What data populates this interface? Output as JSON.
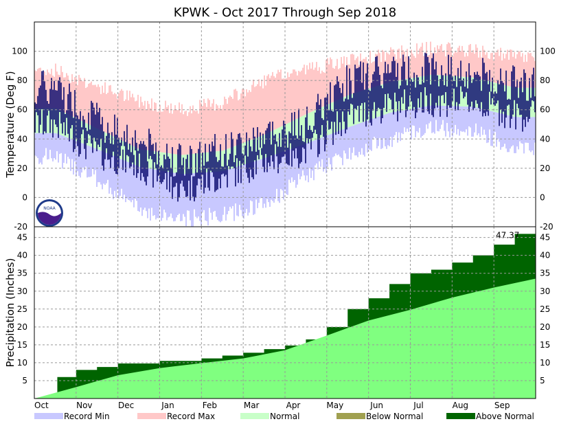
{
  "chart_data": {
    "title": "KPWK - Oct 2017 Through Sep 2018",
    "months": [
      "Oct",
      "Nov",
      "Dec",
      "Jan",
      "Feb",
      "Mar",
      "Apr",
      "May",
      "Jun",
      "Jul",
      "Aug",
      "Sep"
    ],
    "colors": {
      "record_min": "#c8c8ff",
      "record_max": "#ffc8c8",
      "normal": "#c8ffc8",
      "observed": "#0a0a6e",
      "precip_normal": "#80ff80",
      "above_normal": "#006400",
      "below_normal": "#a0a050"
    },
    "temperature": {
      "type": "bar",
      "ylabel": "Temperature (Deg F)",
      "ylim": [
        -20,
        120
      ],
      "yticks": [
        -20,
        0,
        20,
        40,
        60,
        80,
        100
      ],
      "monthly_series": {
        "normal_high": [
          61,
          47,
          33,
          29,
          32,
          43,
          57,
          70,
          79,
          84,
          82,
          75
        ],
        "normal_low": [
          44,
          33,
          21,
          16,
          18,
          27,
          37,
          48,
          58,
          63,
          62,
          55
        ],
        "record_high": [
          87,
          76,
          66,
          60,
          65,
          80,
          88,
          93,
          98,
          102,
          100,
          96
        ],
        "record_low": [
          28,
          12,
          -8,
          -15,
          -12,
          -5,
          15,
          30,
          40,
          48,
          46,
          34
        ],
        "observed_high": [
          75,
          52,
          38,
          25,
          32,
          42,
          50,
          80,
          86,
          88,
          84,
          78
        ],
        "observed_low": [
          50,
          30,
          22,
          5,
          14,
          25,
          32,
          55,
          62,
          66,
          65,
          56
        ]
      }
    },
    "precipitation": {
      "type": "area",
      "ylabel": "Precipitation (Inches)",
      "ylim": [
        0,
        48
      ],
      "yticks": [
        5,
        10,
        15,
        20,
        25,
        30,
        35,
        40,
        45
      ],
      "final_label": "47.37",
      "cumulative_actual_x": [
        0,
        0.3,
        0.45,
        0.55,
        1.0,
        1.5,
        2.0,
        3.0,
        4.0,
        4.5,
        5.0,
        5.5,
        6.0,
        6.5,
        7.0,
        7.5,
        8.0,
        8.5,
        9.0,
        9.5,
        10.0,
        10.5,
        11.0,
        11.5,
        12.0
      ],
      "cumulative_actual": [
        0,
        0.5,
        1.2,
        6.0,
        8.0,
        8.8,
        9.8,
        10.5,
        11.2,
        12.0,
        12.8,
        13.8,
        14.8,
        16.5,
        20.0,
        25.0,
        28.0,
        32.0,
        35.0,
        36.0,
        38.0,
        40.0,
        43.0,
        46.0,
        47.37
      ],
      "cumulative_normal_x": [
        0,
        1,
        2,
        3,
        4,
        5,
        6,
        7,
        8,
        9,
        10,
        11,
        12
      ],
      "cumulative_normal": [
        0,
        3.2,
        6.5,
        8.5,
        9.9,
        11.2,
        13.5,
        17.6,
        21.8,
        24.8,
        28.2,
        31.0,
        33.5
      ]
    },
    "legend": [
      {
        "label": "Record Min",
        "color": "#c8c8ff"
      },
      {
        "label": "Record Max",
        "color": "#ffc8c8"
      },
      {
        "label": "Normal",
        "color": "#c8ffc8"
      },
      {
        "label": "Below Normal",
        "color": "#a0a050"
      },
      {
        "label": "Above Normal",
        "color": "#006400"
      }
    ]
  }
}
